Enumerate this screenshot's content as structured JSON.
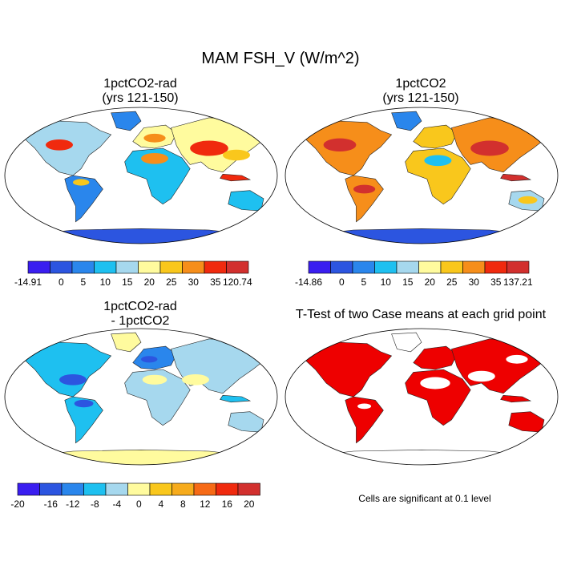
{
  "title": "MAM FSH_V (W/m^2)",
  "panels": [
    {
      "title_line1": "1pctCO2-rad",
      "title_line2": "(yrs 121-150)"
    },
    {
      "title_line1": "1pctCO2",
      "title_line2": "(yrs 121-150)"
    },
    {
      "title_line1": "1pctCO2-rad",
      "title_line2": "- 1pctCO2"
    },
    {
      "title_line1": "T-Test of two Case means at each grid point",
      "title_line2": ""
    }
  ],
  "footnote": "Cells are significant at 0.1 level",
  "colors": {
    "abs_scale": [
      "#3a1ef0",
      "#2c55e0",
      "#2a86ec",
      "#1ec0f0",
      "#a6d8ee",
      "#fffb9e",
      "#f9c71c",
      "#f68e1a",
      "#f02a0e",
      "#d2302e"
    ],
    "diff_scale": [
      "#3a1ef0",
      "#2c55e0",
      "#2a86ec",
      "#1ec0f0",
      "#a6d8ee",
      "#fffb9e",
      "#f9c71c",
      "#f6ab1c",
      "#f66a16",
      "#f02a0e",
      "#d2302e"
    ],
    "significant": "#ee0000"
  },
  "chart_data": [
    {
      "type": "heatmap",
      "map": "world",
      "title": "1pctCO2-rad (yrs 121-150)",
      "colorbar": {
        "labels": [
          "-14.91",
          "0",
          "5",
          "10",
          "15",
          "20",
          "25",
          "30",
          "35",
          "120.74"
        ]
      }
    },
    {
      "type": "heatmap",
      "map": "world",
      "title": "1pctCO2 (yrs 121-150)",
      "colorbar": {
        "labels": [
          "-14.86",
          "0",
          "5",
          "10",
          "15",
          "20",
          "25",
          "30",
          "35",
          "137.21"
        ]
      }
    },
    {
      "type": "heatmap",
      "map": "world",
      "title": "1pctCO2-rad - 1pctCO2",
      "colorbar": {
        "labels": [
          "-20",
          "-16",
          "-12",
          "-8",
          "-4",
          "0",
          "4",
          "8",
          "12",
          "16",
          "20"
        ]
      }
    },
    {
      "type": "heatmap",
      "map": "world",
      "title": "T-Test of two Case means at each grid point",
      "legend": "Cells are significant at 0.1 level"
    }
  ]
}
